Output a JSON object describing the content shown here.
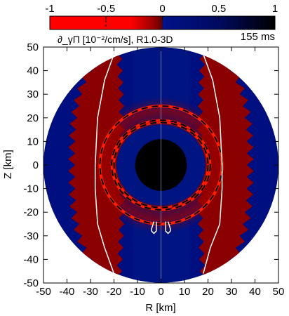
{
  "chart_data": {
    "type": "heatmap",
    "subtitle": "∂_γΠ [10⁻²/cm/s], R1.0-3D",
    "time_label": "155 ms",
    "xlabel": "R [km]",
    "ylabel": "Z [km]",
    "xlim": [
      -50,
      50
    ],
    "ylim": [
      -50,
      50
    ],
    "xticks": [
      -50,
      -40,
      -30,
      -20,
      -10,
      0,
      10,
      20,
      30,
      40,
      50
    ],
    "yticks": [
      -50,
      -40,
      -30,
      -20,
      -10,
      0,
      10,
      20,
      30,
      40,
      50
    ],
    "colorbar": {
      "range": [
        -1,
        1
      ],
      "ticks": [
        -1,
        -0.5,
        0,
        0.5,
        1
      ],
      "colors": {
        "neg_dark": "#7a0000",
        "neg_bright": "#ff1a00",
        "pos_mid": "#001a8a",
        "pos_dark": "#00001a"
      }
    },
    "colors": {
      "outer_blue": "#000f7f",
      "inner_blue": "#001482",
      "red_region": "#8b0000",
      "core": "#000000",
      "ring_red": "#ff2000",
      "contour": "#ffffff"
    },
    "domain_radius_km": 50,
    "core_radius_km": 11,
    "red_side_regions": [
      {
        "side": "right",
        "x_inner_min_km": 10,
        "x_inner_max_km": 18,
        "x_outer_max_km": 38
      },
      {
        "side": "left",
        "x_inner_min_km": -10,
        "x_inner_max_km": -18,
        "x_outer_max_km": -38
      }
    ],
    "shock_rings": [
      {
        "rx_km": 26,
        "rz_km": 25
      },
      {
        "rx_km": 20,
        "rz_km": 18
      },
      {
        "rx_km": 21,
        "rz_km": 19
      }
    ],
    "white_contours": [
      {
        "points": [
          [
            -20,
            47
          ],
          [
            -24,
            36
          ],
          [
            -27,
            20
          ],
          [
            -28,
            0
          ],
          [
            -28,
            -10
          ],
          [
            -27,
            -25
          ],
          [
            -24,
            -35
          ],
          [
            -20,
            -46
          ]
        ]
      },
      {
        "points": [
          [
            18,
            47
          ],
          [
            22,
            36
          ],
          [
            25,
            20
          ],
          [
            26,
            0
          ],
          [
            26,
            -10
          ],
          [
            25,
            -25
          ],
          [
            21,
            -35
          ],
          [
            18,
            -46
          ]
        ]
      },
      {
        "points": [
          [
            -3,
            -24
          ],
          [
            -4,
            -27
          ],
          [
            -4,
            -28
          ],
          [
            -3,
            -29
          ],
          [
            -2,
            -28
          ],
          [
            -2,
            -24
          ]
        ]
      },
      {
        "points": [
          [
            2,
            -24
          ],
          [
            2,
            -28
          ],
          [
            3,
            -29
          ],
          [
            4,
            -28
          ],
          [
            4,
            -27
          ],
          [
            3,
            -24
          ]
        ]
      }
    ]
  }
}
